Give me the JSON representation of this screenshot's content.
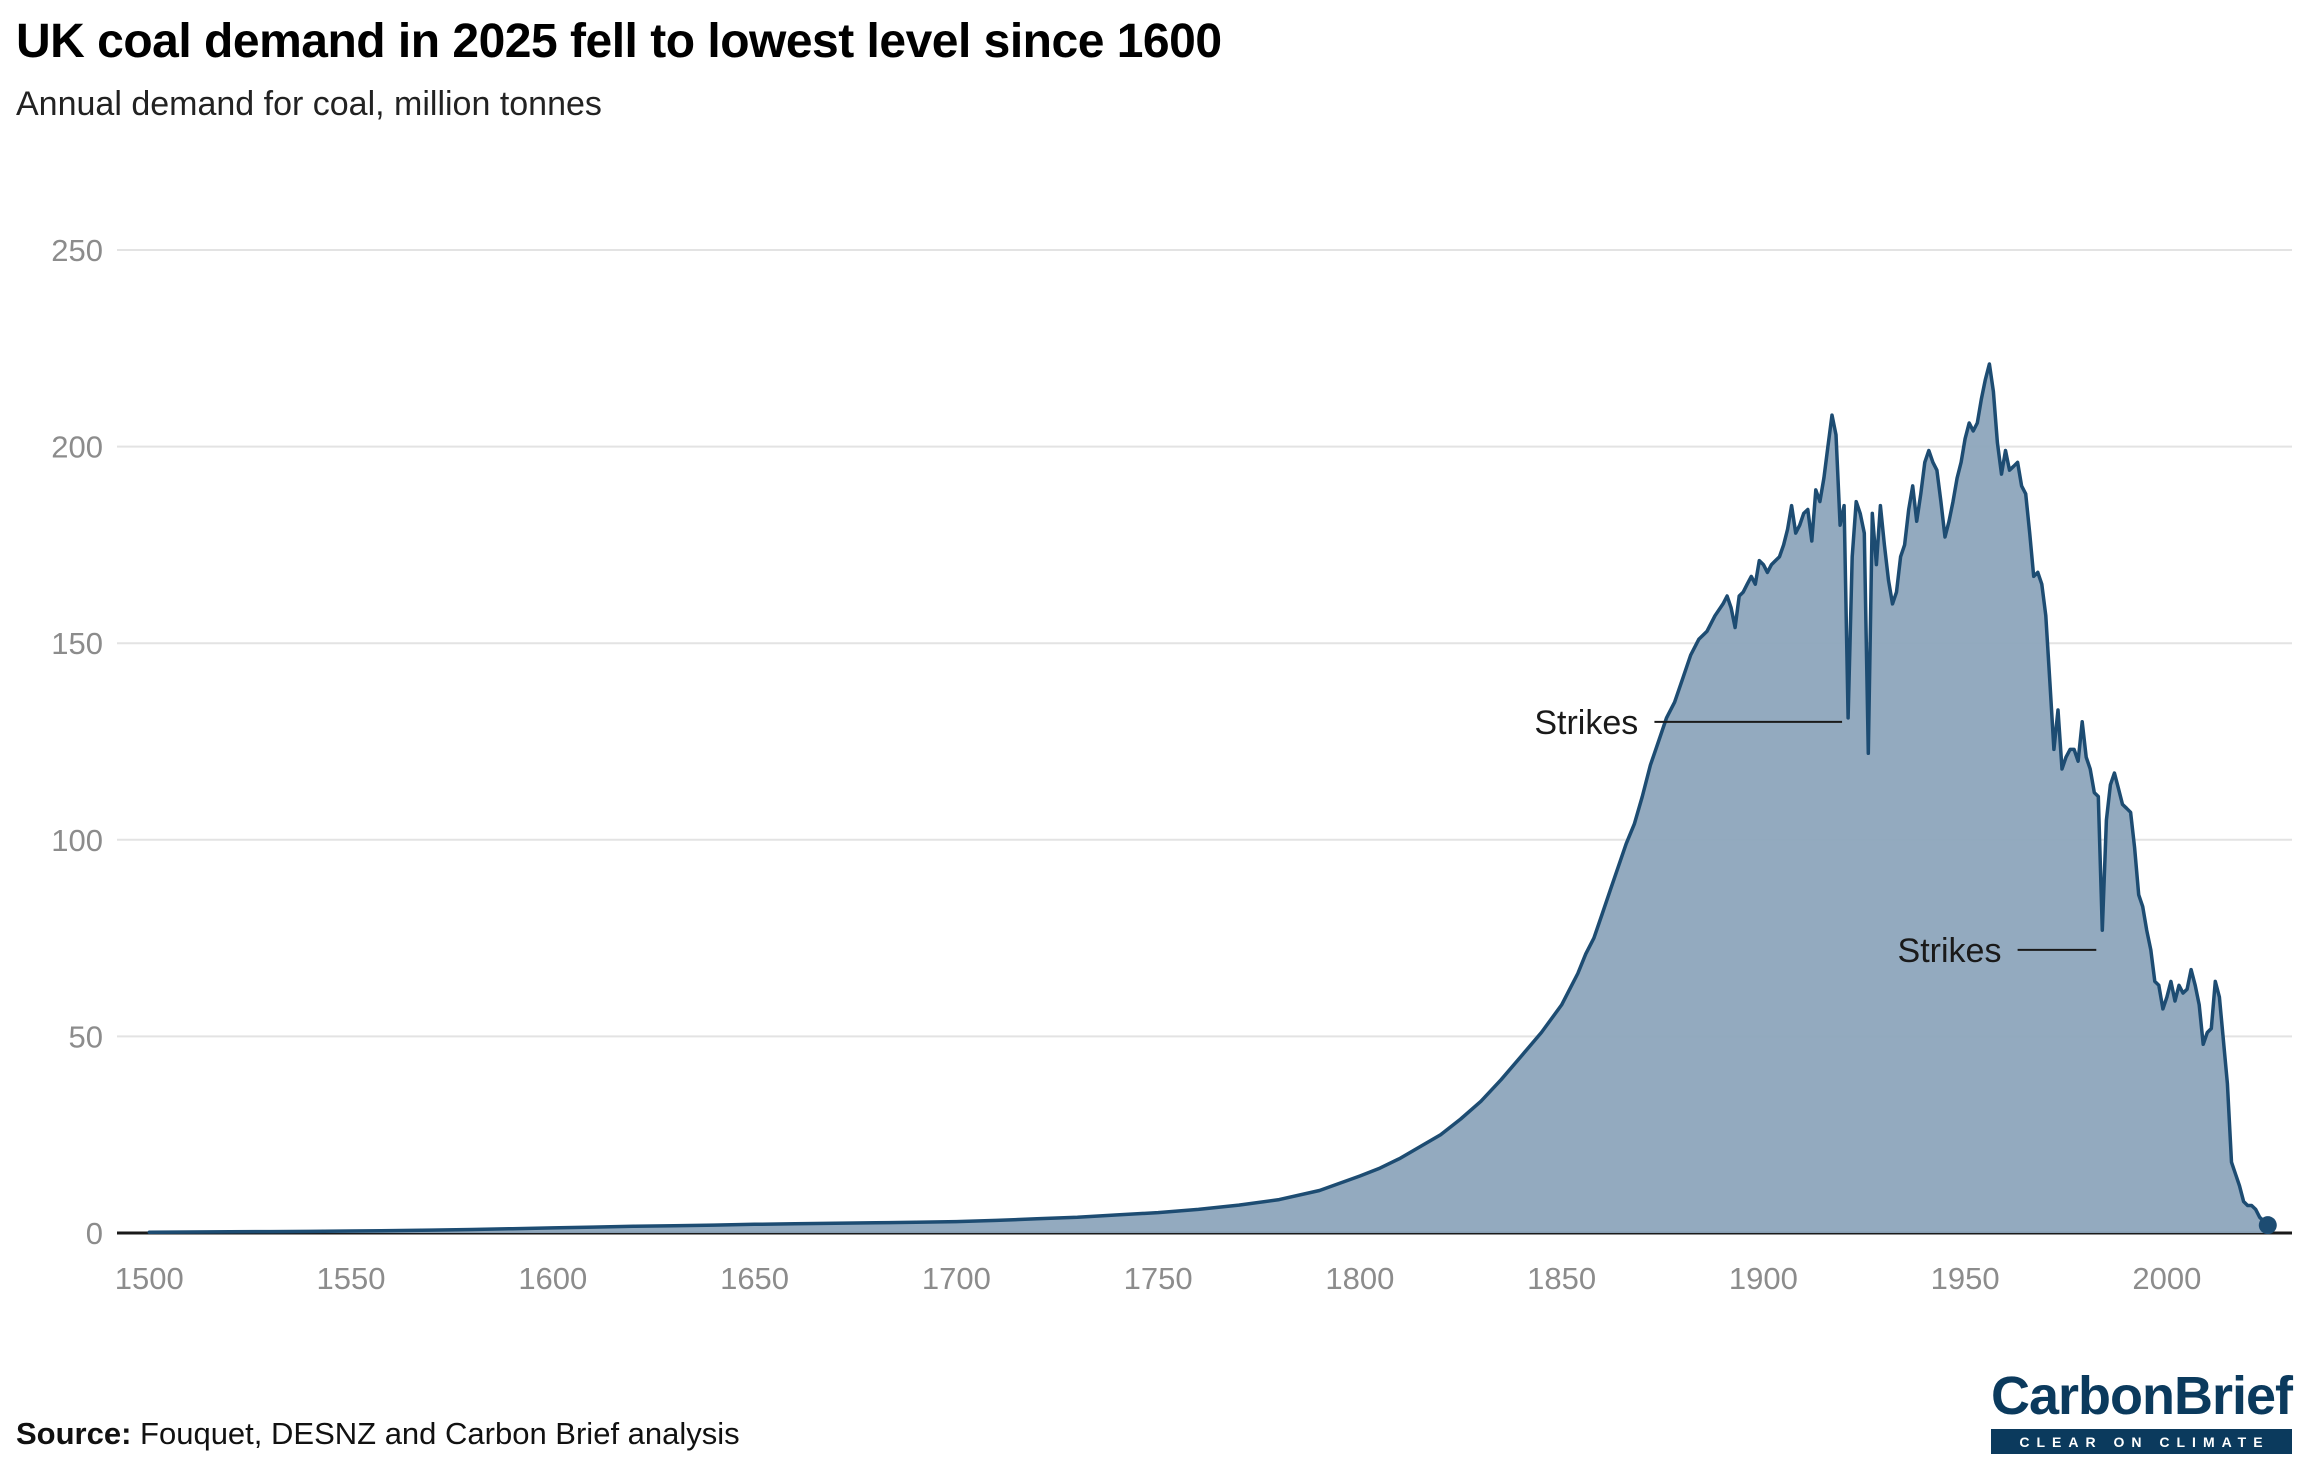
{
  "footer": {
    "source_label": "Source:",
    "source_text": " Fouquet, DESNZ and Carbon Brief analysis",
    "logo_title": "CarbonBrief",
    "logo_tagline": "CLEAR ON CLIMATE"
  },
  "chart_data": {
    "type": "area",
    "title": "UK coal demand in 2025 fell to lowest level since 1600",
    "subtitle": "Annual demand for coal, million tonnes",
    "xlabel": "",
    "ylabel": "Annual demand for coal, million tonnes",
    "x_range": [
      1492,
      2031
    ],
    "y_range": [
      0,
      250
    ],
    "x_ticks": [
      1500,
      1550,
      1600,
      1650,
      1700,
      1750,
      1800,
      1850,
      1900,
      1950,
      2000
    ],
    "y_ticks": [
      0,
      50,
      100,
      150,
      200,
      250
    ],
    "grid": "horizontal",
    "legend": "none",
    "line_color": "#1d4c72",
    "fill_color": "#8da5bc",
    "axis_text_color": "#8c8c8c",
    "grid_color": "#e3e3e3",
    "baseline_color": "#1a1a1a",
    "series": [
      {
        "name": "UK annual coal demand (million tonnes)",
        "points": [
          [
            1500,
            0.2
          ],
          [
            1510,
            0.25
          ],
          [
            1520,
            0.3
          ],
          [
            1530,
            0.35
          ],
          [
            1540,
            0.4
          ],
          [
            1550,
            0.5
          ],
          [
            1560,
            0.6
          ],
          [
            1570,
            0.75
          ],
          [
            1580,
            0.9
          ],
          [
            1590,
            1.1
          ],
          [
            1600,
            1.3
          ],
          [
            1610,
            1.5
          ],
          [
            1620,
            1.7
          ],
          [
            1630,
            1.85
          ],
          [
            1640,
            2.0
          ],
          [
            1650,
            2.2
          ],
          [
            1660,
            2.35
          ],
          [
            1670,
            2.5
          ],
          [
            1680,
            2.6
          ],
          [
            1690,
            2.75
          ],
          [
            1700,
            2.9
          ],
          [
            1710,
            3.2
          ],
          [
            1720,
            3.6
          ],
          [
            1730,
            4.0
          ],
          [
            1740,
            4.6
          ],
          [
            1750,
            5.2
          ],
          [
            1760,
            6.0
          ],
          [
            1770,
            7.1
          ],
          [
            1780,
            8.5
          ],
          [
            1790,
            10.8
          ],
          [
            1800,
            14.5
          ],
          [
            1805,
            16.5
          ],
          [
            1810,
            19
          ],
          [
            1815,
            22
          ],
          [
            1820,
            25
          ],
          [
            1825,
            29
          ],
          [
            1830,
            33.5
          ],
          [
            1835,
            39
          ],
          [
            1840,
            45
          ],
          [
            1845,
            51
          ],
          [
            1850,
            58
          ],
          [
            1852,
            62
          ],
          [
            1854,
            66
          ],
          [
            1856,
            71
          ],
          [
            1858,
            75
          ],
          [
            1860,
            81
          ],
          [
            1862,
            87
          ],
          [
            1864,
            93
          ],
          [
            1866,
            99
          ],
          [
            1868,
            104
          ],
          [
            1870,
            111
          ],
          [
            1872,
            119
          ],
          [
            1874,
            125
          ],
          [
            1876,
            131
          ],
          [
            1878,
            135
          ],
          [
            1880,
            141
          ],
          [
            1882,
            147
          ],
          [
            1884,
            151
          ],
          [
            1886,
            153
          ],
          [
            1888,
            157
          ],
          [
            1890,
            160
          ],
          [
            1891,
            162
          ],
          [
            1892,
            159
          ],
          [
            1893,
            154
          ],
          [
            1894,
            162
          ],
          [
            1895,
            163
          ],
          [
            1896,
            165
          ],
          [
            1897,
            167
          ],
          [
            1898,
            165
          ],
          [
            1899,
            171
          ],
          [
            1900,
            170
          ],
          [
            1901,
            168
          ],
          [
            1902,
            170
          ],
          [
            1903,
            171
          ],
          [
            1904,
            172
          ],
          [
            1905,
            175
          ],
          [
            1906,
            179
          ],
          [
            1907,
            185
          ],
          [
            1908,
            178
          ],
          [
            1909,
            180
          ],
          [
            1910,
            183
          ],
          [
            1911,
            184
          ],
          [
            1912,
            176
          ],
          [
            1913,
            189
          ],
          [
            1914,
            186
          ],
          [
            1915,
            192
          ],
          [
            1916,
            200
          ],
          [
            1917,
            208
          ],
          [
            1918,
            203
          ],
          [
            1919,
            180
          ],
          [
            1920,
            185
          ],
          [
            1921,
            131
          ],
          [
            1922,
            172
          ],
          [
            1923,
            186
          ],
          [
            1924,
            183
          ],
          [
            1925,
            178
          ],
          [
            1926,
            122
          ],
          [
            1927,
            183
          ],
          [
            1928,
            170
          ],
          [
            1929,
            185
          ],
          [
            1930,
            175
          ],
          [
            1931,
            166
          ],
          [
            1932,
            160
          ],
          [
            1933,
            163
          ],
          [
            1934,
            172
          ],
          [
            1935,
            175
          ],
          [
            1936,
            184
          ],
          [
            1937,
            190
          ],
          [
            1938,
            181
          ],
          [
            1939,
            188
          ],
          [
            1940,
            196
          ],
          [
            1941,
            199
          ],
          [
            1942,
            196
          ],
          [
            1943,
            194
          ],
          [
            1944,
            186
          ],
          [
            1945,
            177
          ],
          [
            1946,
            181
          ],
          [
            1947,
            186
          ],
          [
            1948,
            192
          ],
          [
            1949,
            196
          ],
          [
            1950,
            202
          ],
          [
            1951,
            206
          ],
          [
            1952,
            204
          ],
          [
            1953,
            206
          ],
          [
            1954,
            212
          ],
          [
            1955,
            217
          ],
          [
            1956,
            221
          ],
          [
            1957,
            214
          ],
          [
            1958,
            201
          ],
          [
            1959,
            193
          ],
          [
            1960,
            199
          ],
          [
            1961,
            194
          ],
          [
            1962,
            195
          ],
          [
            1963,
            196
          ],
          [
            1964,
            190
          ],
          [
            1965,
            188
          ],
          [
            1966,
            178
          ],
          [
            1967,
            167
          ],
          [
            1968,
            168
          ],
          [
            1969,
            165
          ],
          [
            1970,
            157
          ],
          [
            1971,
            140
          ],
          [
            1972,
            123
          ],
          [
            1973,
            133
          ],
          [
            1974,
            118
          ],
          [
            1975,
            121
          ],
          [
            1976,
            123
          ],
          [
            1977,
            123
          ],
          [
            1978,
            120
          ],
          [
            1979,
            130
          ],
          [
            1980,
            121
          ],
          [
            1981,
            118
          ],
          [
            1982,
            112
          ],
          [
            1983,
            111
          ],
          [
            1984,
            77
          ],
          [
            1985,
            105
          ],
          [
            1986,
            114
          ],
          [
            1987,
            117
          ],
          [
            1988,
            113
          ],
          [
            1989,
            109
          ],
          [
            1990,
            108
          ],
          [
            1991,
            107
          ],
          [
            1992,
            98
          ],
          [
            1993,
            86
          ],
          [
            1994,
            83
          ],
          [
            1995,
            77
          ],
          [
            1996,
            72
          ],
          [
            1997,
            64
          ],
          [
            1998,
            63
          ],
          [
            1999,
            57
          ],
          [
            2000,
            60
          ],
          [
            2001,
            64
          ],
          [
            2002,
            59
          ],
          [
            2003,
            63
          ],
          [
            2004,
            61
          ],
          [
            2005,
            62
          ],
          [
            2006,
            67
          ],
          [
            2007,
            63
          ],
          [
            2008,
            58
          ],
          [
            2009,
            48
          ],
          [
            2010,
            51
          ],
          [
            2011,
            52
          ],
          [
            2012,
            64
          ],
          [
            2013,
            60
          ],
          [
            2014,
            49
          ],
          [
            2015,
            38
          ],
          [
            2016,
            18
          ],
          [
            2017,
            15
          ],
          [
            2018,
            12
          ],
          [
            2019,
            8
          ],
          [
            2020,
            7
          ],
          [
            2021,
            7
          ],
          [
            2022,
            6
          ],
          [
            2023,
            4
          ],
          [
            2024,
            3
          ],
          [
            2025,
            2
          ]
        ]
      }
    ],
    "annotations": [
      {
        "label": "Strikes",
        "target_year": 1921,
        "target_value": 131,
        "line_start_year": 1873,
        "line_end_year": 1919.5,
        "line_value": 130,
        "text_end_year": 1869,
        "text_value": 130
      },
      {
        "label": "Strikes",
        "target_year": 1984,
        "target_value": 77,
        "line_start_year": 1963,
        "line_end_year": 1982.5,
        "line_value": 72,
        "text_end_year": 1959,
        "text_value": 72
      }
    ],
    "end_point": {
      "year": 2025,
      "value": 2
    }
  }
}
